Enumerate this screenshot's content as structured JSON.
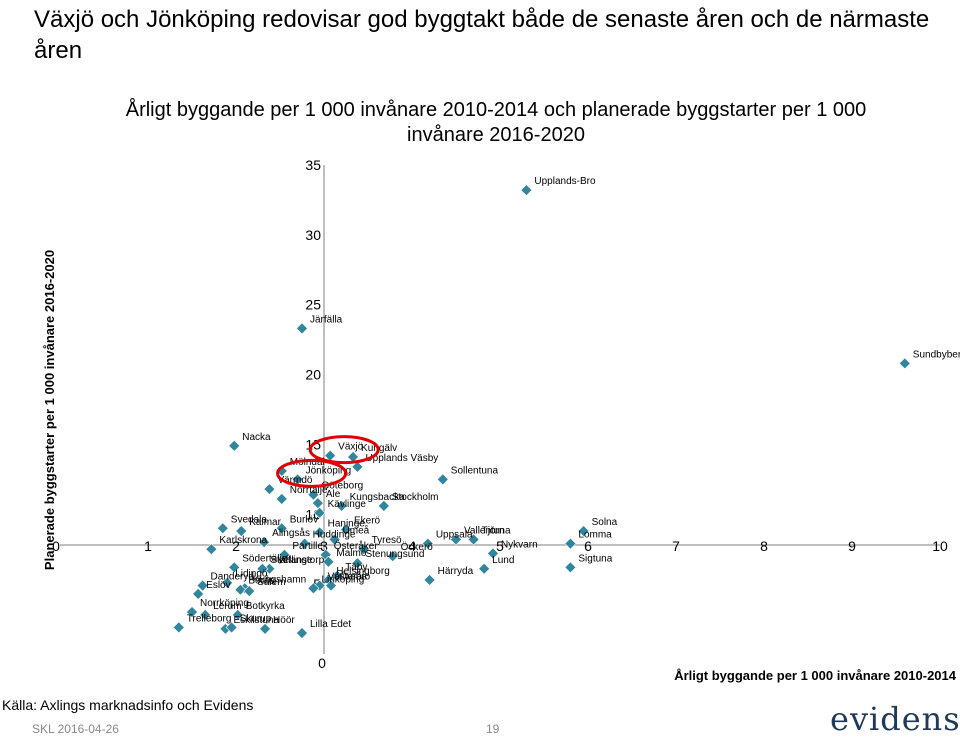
{
  "headline": "Växjö och Jönköping redovisar god byggtakt både de senaste åren och de närmaste åren",
  "source": "Källa: Axlings marknadsinfo och Evidens",
  "footer": "SKL 2016-04-26",
  "page_number": "19",
  "logo_text": "evidens:",
  "colors": {
    "marker": "#31859c",
    "highlight": "#e00000",
    "footer_text": "#8a8a8a",
    "logo": "#1f3a58"
  },
  "chart_data": {
    "type": "scatter",
    "title": "Årligt byggande per 1 000 invånare 2010-2014 och planerade byggstarter per 1 000 invånare 2016-2020",
    "xlabel": "Årligt byggande per 1 000 invånare 2010-2014",
    "ylabel": "Planerade byggstarter per 1 000 invånare 2016-2020",
    "xlim": [
      0,
      10
    ],
    "ylim": [
      0,
      35
    ],
    "x_ticks": [
      0,
      1,
      2,
      3,
      4,
      5,
      6,
      7,
      8,
      9,
      10
    ],
    "y_ticks": [
      0,
      5,
      10,
      15,
      20,
      25,
      30,
      35
    ],
    "grid": false,
    "highlighted": [
      "Växjö",
      "Jönköping"
    ],
    "points": [
      {
        "name": "Upplands-Bro",
        "x": 5.3,
        "y": 33.2
      },
      {
        "name": "Sundbyberg",
        "x": 9.6,
        "y": 20.8
      },
      {
        "name": "Järfälla",
        "x": 2.75,
        "y": 23.3
      },
      {
        "name": "Nacka",
        "x": 1.98,
        "y": 14.9
      },
      {
        "name": "Kungälv",
        "x": 3.33,
        "y": 14.1
      },
      {
        "name": "Växjö",
        "x": 3.07,
        "y": 14.2
      },
      {
        "name": "Sollentuna",
        "x": 4.35,
        "y": 12.5
      },
      {
        "name": "Mölndal",
        "x": 2.52,
        "y": 13.1
      },
      {
        "name": "Upplands Väsby",
        "x": 3.38,
        "y": 13.4
      },
      {
        "name": "Jönköping",
        "x": 2.7,
        "y": 12.5
      },
      {
        "name": "Värmdö",
        "x": 2.38,
        "y": 11.8
      },
      {
        "name": "Göteborg",
        "x": 2.88,
        "y": 11.4
      },
      {
        "name": "Norrtälje",
        "x": 2.52,
        "y": 11.1
      },
      {
        "name": "Ale",
        "x": 2.93,
        "y": 10.8
      },
      {
        "name": "Kungsbacka",
        "x": 3.2,
        "y": 10.6
      },
      {
        "name": "Kävlinge",
        "x": 2.95,
        "y": 10.1
      },
      {
        "name": "Solna",
        "x": 5.95,
        "y": 8.8
      },
      {
        "name": "Stockholm",
        "x": 3.68,
        "y": 10.6
      },
      {
        "name": "Svedala",
        "x": 1.85,
        "y": 9.0
      },
      {
        "name": "Kalmar",
        "x": 2.06,
        "y": 8.8
      },
      {
        "name": "Burlöv",
        "x": 2.52,
        "y": 9.0
      },
      {
        "name": "Haninge",
        "x": 2.95,
        "y": 8.7
      },
      {
        "name": "Alingsås",
        "x": 2.32,
        "y": 8.0
      },
      {
        "name": "Ekerö",
        "x": 3.25,
        "y": 8.9
      },
      {
        "name": "Umeå",
        "x": 3.12,
        "y": 8.2
      },
      {
        "name": "Vallentuna",
        "x": 4.5,
        "y": 8.2
      },
      {
        "name": "Huddinge",
        "x": 2.78,
        "y": 7.9
      },
      {
        "name": "Österåker",
        "x": 3.02,
        "y": 7.1
      },
      {
        "name": "Tjörn",
        "x": 4.7,
        "y": 8.2
      },
      {
        "name": "Lomma",
        "x": 5.8,
        "y": 7.9
      },
      {
        "name": "Karlskrona",
        "x": 1.72,
        "y": 7.5
      },
      {
        "name": "Södertälje",
        "x": 1.98,
        "y": 6.2
      },
      {
        "name": "Partille",
        "x": 2.55,
        "y": 7.1
      },
      {
        "name": "Uppsala",
        "x": 4.18,
        "y": 7.9
      },
      {
        "name": "Tyresö",
        "x": 3.45,
        "y": 7.5
      },
      {
        "name": "Nykvarn",
        "x": 4.92,
        "y": 7.2
      },
      {
        "name": "Öckerö",
        "x": 3.78,
        "y": 7.0
      },
      {
        "name": "Malmö",
        "x": 3.05,
        "y": 6.6
      },
      {
        "name": "Vellinge",
        "x": 2.38,
        "y": 6.1
      },
      {
        "name": "Stenungsund",
        "x": 3.38,
        "y": 6.5
      },
      {
        "name": "Lund",
        "x": 4.82,
        "y": 6.1
      },
      {
        "name": "Sigtuna",
        "x": 5.8,
        "y": 6.2
      },
      {
        "name": "Danderyd",
        "x": 1.62,
        "y": 4.9
      },
      {
        "name": "Lidingö",
        "x": 1.9,
        "y": 5.1
      },
      {
        "name": "Staffanstorp",
        "x": 2.3,
        "y": 6.1
      },
      {
        "name": "Täby",
        "x": 3.15,
        "y": 5.6
      },
      {
        "name": "Helsingborg",
        "x": 3.05,
        "y": 5.3
      },
      {
        "name": "Härryda",
        "x": 4.2,
        "y": 5.3
      },
      {
        "name": "Eslöv",
        "x": 1.57,
        "y": 4.3
      },
      {
        "name": "Kungshamn",
        "x": 2.1,
        "y": 4.7
      },
      {
        "name": "Västerås",
        "x": 2.95,
        "y": 4.9
      },
      {
        "name": "Borås",
        "x": 2.05,
        "y": 4.6
      },
      {
        "name": "Salem",
        "x": 2.15,
        "y": 4.5
      },
      {
        "name": "Linköping",
        "x": 2.88,
        "y": 4.7
      },
      {
        "name": "Örebro",
        "x": 3.08,
        "y": 4.9
      },
      {
        "name": "Norrköping",
        "x": 1.5,
        "y": 3.0
      },
      {
        "name": "Lerum",
        "x": 1.65,
        "y": 2.8
      },
      {
        "name": "Botkyrka",
        "x": 2.02,
        "y": 2.8
      },
      {
        "name": "Höör",
        "x": 2.33,
        "y": 1.8
      },
      {
        "name": "Trelleborg",
        "x": 1.35,
        "y": 1.9
      },
      {
        "name": "Eskilstuna",
        "x": 1.88,
        "y": 1.8
      },
      {
        "name": "Skurup",
        "x": 1.95,
        "y": 1.9
      },
      {
        "name": "Lilla Edet",
        "x": 2.75,
        "y": 1.5
      }
    ]
  }
}
